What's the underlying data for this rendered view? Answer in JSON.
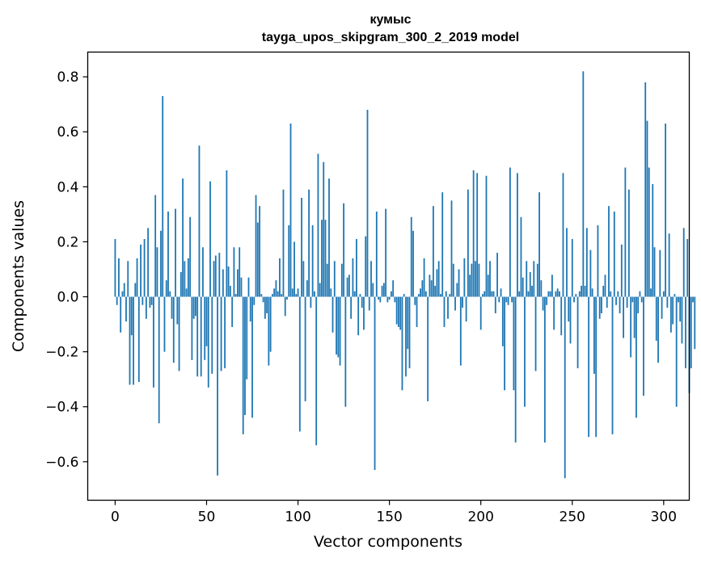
{
  "chart_data": {
    "type": "bar",
    "title": "кумыс",
    "subtitle": "tayga_upos_skipgram_300_2_2019 model",
    "xlabel": "Vector components",
    "ylabel": "Components values",
    "xlim": [
      -15,
      314
    ],
    "ylim": [
      -0.74,
      0.89
    ],
    "xticks": [
      0,
      50,
      100,
      150,
      200,
      250,
      300
    ],
    "xtick_labels": [
      "0",
      "50",
      "100",
      "150",
      "200",
      "250",
      "300"
    ],
    "yticks": [
      -0.6,
      -0.4,
      -0.2,
      0.0,
      0.2,
      0.4,
      0.6,
      0.8
    ],
    "ytick_labels": [
      "−0.6",
      "−0.4",
      "−0.2",
      "0.0",
      "0.2",
      "0.4",
      "0.6",
      "0.8"
    ],
    "bar_color": "#1f77b4",
    "values": [
      0.21,
      -0.03,
      0.14,
      -0.13,
      0.02,
      0.05,
      -0.09,
      0.13,
      -0.32,
      -0.14,
      -0.32,
      0.05,
      0.14,
      -0.31,
      0.19,
      -0.03,
      0.21,
      -0.08,
      0.25,
      -0.04,
      -0.03,
      -0.33,
      0.37,
      0.18,
      -0.46,
      0.24,
      0.73,
      -0.2,
      0.06,
      0.31,
      0.02,
      -0.08,
      -0.24,
      0.32,
      -0.1,
      -0.27,
      0.09,
      0.43,
      0.13,
      0.03,
      0.14,
      0.29,
      -0.23,
      -0.08,
      -0.07,
      -0.29,
      0.55,
      -0.29,
      0.18,
      -0.23,
      -0.18,
      -0.33,
      0.42,
      -0.28,
      0.13,
      0.15,
      -0.65,
      0.16,
      -0.27,
      0.1,
      -0.26,
      0.46,
      0.11,
      0.04,
      -0.11,
      0.18,
      0.01,
      0.1,
      0.18,
      0.07,
      -0.5,
      -0.43,
      -0.3,
      0.07,
      -0.09,
      -0.44,
      -0.03,
      0.37,
      0.27,
      0.33,
      0.01,
      -0.02,
      -0.08,
      -0.06,
      -0.25,
      -0.2,
      0.01,
      0.03,
      0.06,
      0.02,
      0.14,
      0.01,
      0.39,
      -0.07,
      -0.01,
      0.26,
      0.63,
      0.03,
      0.2,
      0.01,
      0.03,
      -0.49,
      0.36,
      0.13,
      -0.38,
      0.06,
      0.39,
      -0.04,
      0.26,
      0.02,
      -0.54,
      0.52,
      0.05,
      0.28,
      0.49,
      0.28,
      0.12,
      0.43,
      0.03,
      -0.13,
      0.13,
      -0.21,
      -0.22,
      -0.25,
      0.12,
      0.34,
      -0.4,
      0.07,
      0.08,
      -0.08,
      0.14,
      0.02,
      0.21,
      -0.14,
      0.01,
      -0.04,
      -0.12,
      0.22,
      0.68,
      -0.05,
      0.13,
      0.05,
      -0.63,
      0.31,
      -0.01,
      -0.02,
      0.04,
      0.05,
      0.32,
      -0.02,
      -0.01,
      0.02,
      0.06,
      -0.02,
      -0.1,
      -0.11,
      -0.12,
      -0.34,
      0.01,
      -0.29,
      -0.19,
      -0.26,
      0.29,
      0.24,
      -0.03,
      -0.11,
      0.01,
      0.03,
      0.06,
      0.14,
      0.02,
      -0.38,
      0.08,
      0.06,
      0.33,
      0.04,
      0.1,
      0.13,
      0.01,
      0.38,
      -0.11,
      0.02,
      -0.08,
      0.01,
      0.35,
      0.12,
      -0.05,
      0.05,
      0.1,
      -0.25,
      -0.04,
      0.14,
      -0.09,
      0.39,
      0.08,
      0.12,
      0.46,
      0.13,
      0.45,
      0.12,
      -0.12,
      0.01,
      0.02,
      0.44,
      0.08,
      0.13,
      0.02,
      0.02,
      -0.06,
      0.16,
      -0.02,
      0.03,
      -0.18,
      -0.34,
      -0.02,
      -0.03,
      0.47,
      -0.02,
      -0.34,
      -0.53,
      0.45,
      0.02,
      0.29,
      0.07,
      -0.4,
      0.13,
      0.02,
      0.09,
      0.04,
      0.13,
      -0.27,
      0.12,
      0.38,
      0.06,
      -0.05,
      -0.53,
      -0.03,
      0.02,
      0.02,
      0.08,
      -0.12,
      0.02,
      0.03,
      0.02,
      -0.14,
      0.45,
      -0.66,
      0.25,
      -0.09,
      -0.17,
      0.21,
      -0.02,
      0.01,
      -0.26,
      0.02,
      0.04,
      0.82,
      0.04,
      0.25,
      -0.51,
      0.17,
      0.03,
      -0.28,
      -0.51,
      0.26,
      -0.08,
      -0.06,
      0.04,
      0.08,
      -0.04,
      0.33,
      0.02,
      -0.5,
      0.31,
      -0.03,
      0.02,
      -0.06,
      0.19,
      -0.15,
      0.47,
      -0.04,
      0.39,
      -0.22,
      -0.02,
      -0.15,
      -0.44,
      -0.06,
      0.02,
      -0.02,
      -0.36,
      0.78,
      0.64,
      0.47,
      0.03,
      0.41,
      0.18,
      -0.16,
      -0.24,
      0.17,
      -0.08,
      0.02,
      0.63,
      -0.04,
      0.23,
      -0.13,
      -0.1,
      0.01,
      -0.4,
      -0.02,
      -0.09,
      -0.17,
      0.25,
      -0.26,
      0.21,
      -0.35,
      -0.26,
      -0.02,
      -0.19
    ]
  }
}
